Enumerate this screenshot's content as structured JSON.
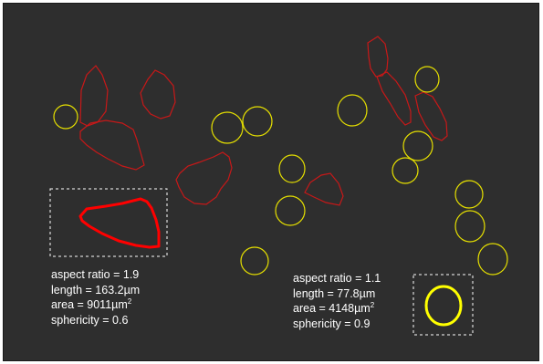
{
  "colors": {
    "background": "#2e2e2e",
    "elongated_outline": "#c81818",
    "round_outline": "#e6e000",
    "highlight_elongated": "#ff0000",
    "highlight_round": "#ffff00",
    "dashed_box": "#ffffff",
    "text": "#ffffff"
  },
  "left_stats": {
    "aspect_ratio": "aspect ratio = 1.9",
    "length": "length = 163.2µm",
    "area": "area = 9011µm",
    "area_exponent": "2",
    "sphericity": "sphericity = 0.6"
  },
  "right_stats": {
    "aspect_ratio": "aspect ratio = 1.1",
    "length": "length = 77.8µm",
    "area": "area = 4148µm",
    "area_exponent": "2",
    "sphericity": "sphericity = 0.9"
  }
}
